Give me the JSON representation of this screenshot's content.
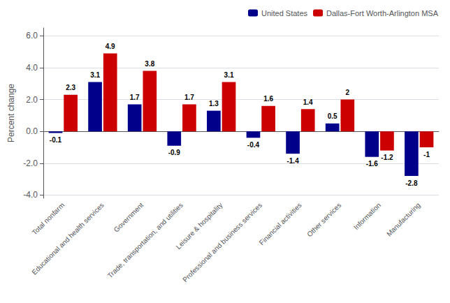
{
  "chart_data": {
    "type": "bar",
    "ylabel": "Percent change",
    "categories": [
      "Total nonfarm",
      "Educational and health services",
      "Government",
      "Trade, transportation, and utilities",
      "Leisure & hospitality",
      "Professional and business services",
      "Financial activities",
      "Other services",
      "Information",
      "Manufacturing"
    ],
    "series": [
      {
        "name": "United States",
        "color": "#00008B",
        "values": [
          -0.1,
          3.1,
          1.7,
          -0.9,
          1.3,
          -0.4,
          -1.4,
          0.5,
          -1.6,
          -2.8
        ]
      },
      {
        "name": "Dallas-Fort Worth-Arlington MSA",
        "color": "#CC0000",
        "values": [
          2.3,
          4.9,
          3.8,
          1.7,
          3.1,
          1.6,
          1.4,
          2.0,
          -1.2,
          -1.0
        ]
      }
    ],
    "ylim": [
      -4.2,
      6.5
    ],
    "yticks": [
      {
        "value": -4.0,
        "label": "-4.0"
      },
      {
        "value": -2.0,
        "label": "-2.0"
      },
      {
        "value": 0.0,
        "label": "0.0"
      },
      {
        "value": 2.0,
        "label": "2.0"
      },
      {
        "value": 4.0,
        "label": "4.0"
      },
      {
        "value": 6.0,
        "label": "6.0"
      }
    ],
    "grid": true,
    "legend": "upper right",
    "data_labels": true
  }
}
